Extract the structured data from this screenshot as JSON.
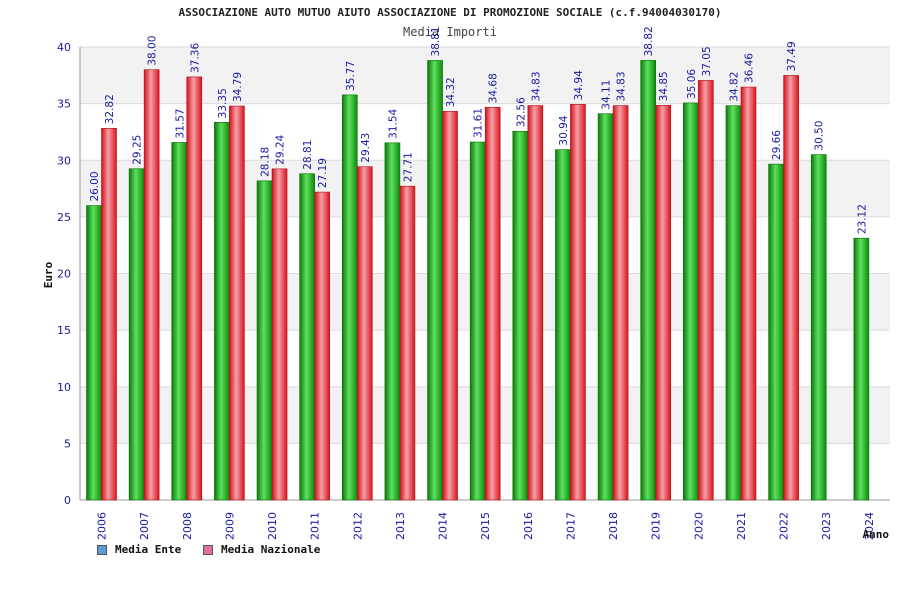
{
  "chart_data": {
    "type": "bar",
    "title": "ASSOCIAZIONE AUTO MUTUO AIUTO ASSOCIAZIONE DI PROMOZIONE SOCIALE (c.f.94004030170)",
    "subtitle": "Media Importi",
    "xlabel": "Anno",
    "ylabel": "Euro",
    "ylim": [
      0,
      40
    ],
    "yticks": [
      0,
      5,
      10,
      15,
      20,
      25,
      30,
      35,
      40
    ],
    "grid": "horizontal bands",
    "legend_position": "bottom-left",
    "categories": [
      "2006",
      "2007",
      "2008",
      "2009",
      "2010",
      "2011",
      "2012",
      "2013",
      "2014",
      "2015",
      "2016",
      "2017",
      "2018",
      "2019",
      "2020",
      "2021",
      "2022",
      "2023",
      "2024"
    ],
    "series": [
      {
        "name": "Media Ente",
        "color": "#109910",
        "legend_color": "#5b9bd5",
        "values": [
          26.0,
          29.25,
          31.57,
          33.35,
          28.18,
          28.81,
          35.77,
          31.54,
          38.81,
          31.61,
          32.56,
          30.94,
          34.11,
          38.82,
          35.06,
          34.82,
          29.66,
          30.5,
          23.12
        ],
        "labels": [
          "26.00",
          "29.25",
          "31.57",
          "33.35",
          "28.18",
          "28.81",
          "35.77",
          "31.54",
          "38.81",
          "31.61",
          "32.56",
          "30.94",
          "34.11",
          "38.82",
          "35.06",
          "34.82",
          "29.66",
          "30.50",
          "23.12"
        ]
      },
      {
        "name": "Media Nazionale",
        "color": "#e0202a",
        "legend_color": "#e070a0",
        "values": [
          32.82,
          38.0,
          37.36,
          34.79,
          29.24,
          27.19,
          29.43,
          27.71,
          34.32,
          34.68,
          34.83,
          34.94,
          34.83,
          34.85,
          37.05,
          36.46,
          37.49,
          null,
          null
        ],
        "labels": [
          "32.82",
          "38.00",
          "37.36",
          "34.79",
          "29.24",
          "27.19",
          "29.43",
          "27.71",
          "34.32",
          "34.68",
          "34.83",
          "34.94",
          "34.83",
          "34.85",
          "37.05",
          "36.46",
          "37.49",
          null,
          null
        ]
      }
    ]
  }
}
